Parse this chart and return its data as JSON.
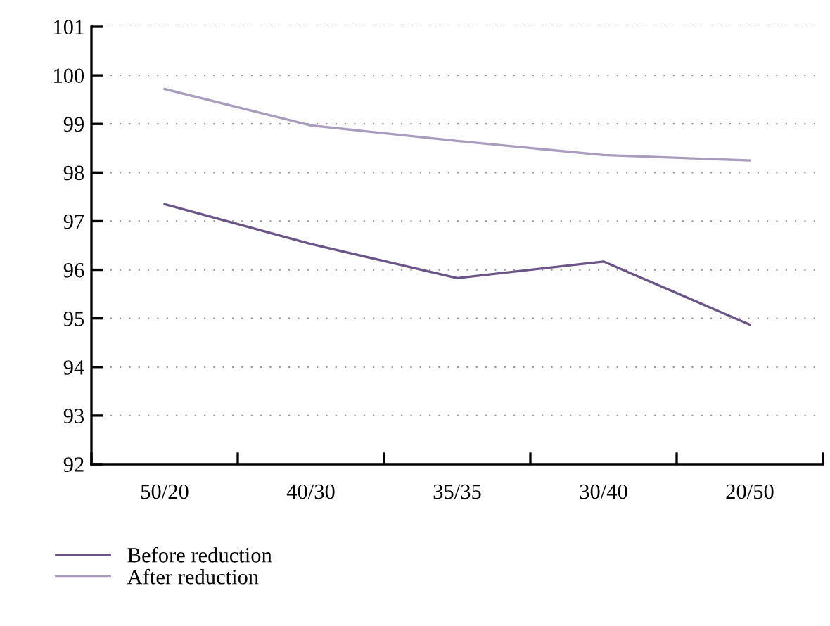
{
  "chart_data": {
    "type": "line",
    "categories": [
      "50/20",
      "40/30",
      "35/35",
      "30/40",
      "20/50"
    ],
    "series": [
      {
        "name": "Before reduction",
        "color": "#6b5488",
        "values": [
          97.35,
          96.53,
          95.83,
          96.17,
          94.87
        ]
      },
      {
        "name": "After reduction",
        "color": "#a99cbf",
        "values": [
          99.72,
          98.97,
          98.65,
          98.36,
          98.25
        ]
      }
    ],
    "ylim": [
      92,
      101
    ],
    "yticks": [
      92,
      93,
      94,
      95,
      96,
      97,
      98,
      99,
      100,
      101
    ],
    "grid": "y",
    "legend": "bottom left",
    "marker": "none",
    "line_style": "solid"
  }
}
